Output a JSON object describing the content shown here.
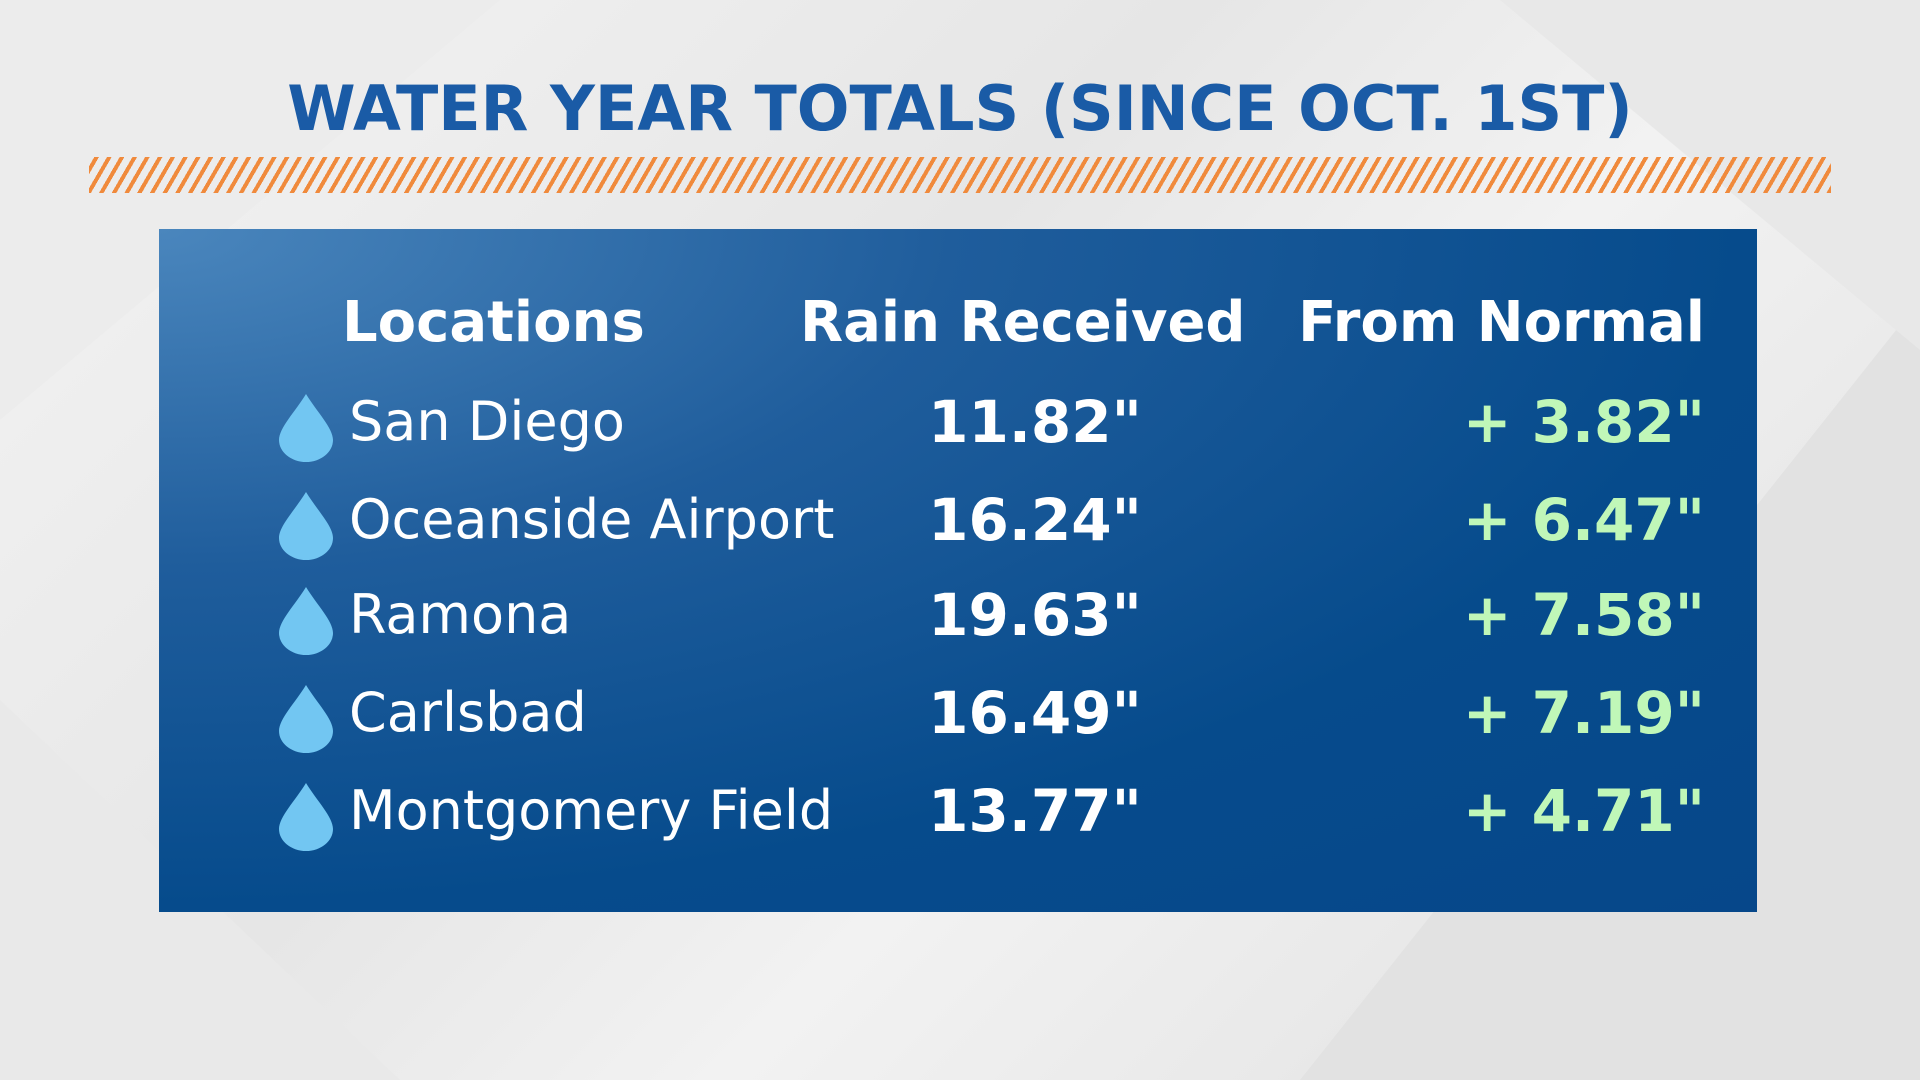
{
  "header": {
    "title": "WATER YEAR TOTALS (SINCE OCT. 1ST)"
  },
  "table": {
    "columns": [
      "Locations",
      "Rain Received",
      "From Normal"
    ],
    "rows": [
      [
        "San Diego",
        "11.82\"",
        "+ 3.82\""
      ],
      [
        "Oceanside Airport",
        "16.24\"",
        "+ 6.47\""
      ],
      [
        "Ramona",
        "19.63\"",
        "+ 7.58\""
      ],
      [
        "Carlsbad",
        "16.49\"",
        "+ 7.19\""
      ],
      [
        "Montgomery Field",
        "13.77\"",
        "+ 4.71\""
      ]
    ]
  }
}
